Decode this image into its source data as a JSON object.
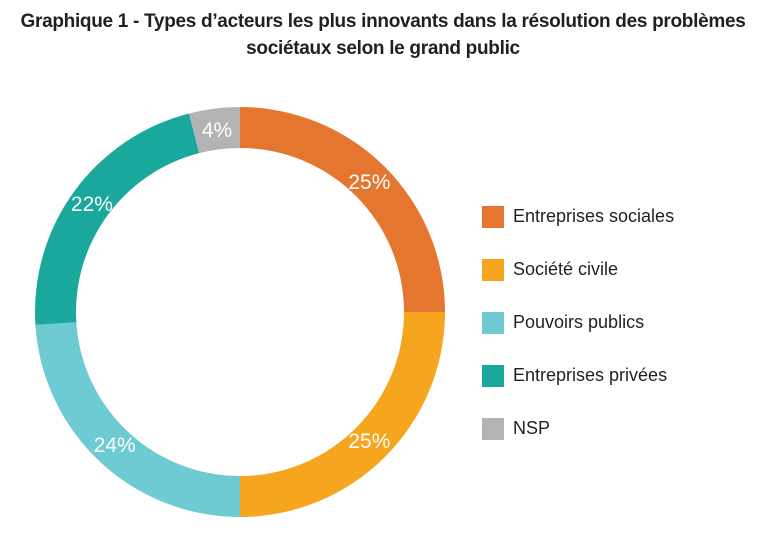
{
  "chart_data": {
    "type": "pie",
    "title_lines": [
      "Graphique 1 - Types d’acteurs les plus innovants dans la résolution des problèmes",
      "sociétaux selon le grand public"
    ],
    "value_labels": [
      "25%",
      "25%",
      "24%",
      "22%",
      "4%"
    ],
    "slices": [
      {
        "name": "Entreprises sociales",
        "value": 25,
        "color": "#e5762f"
      },
      {
        "name": "Société civile",
        "value": 25,
        "color": "#f6a51e"
      },
      {
        "name": "Pouvoirs publics",
        "value": 24,
        "color": "#6ecbd3"
      },
      {
        "name": "Entreprises privées",
        "value": 22,
        "color": "#1aa89d"
      },
      {
        "name": "NSP",
        "value": 4,
        "color": "#b3b3b5"
      }
    ],
    "donut": true,
    "legend_position": "right"
  }
}
